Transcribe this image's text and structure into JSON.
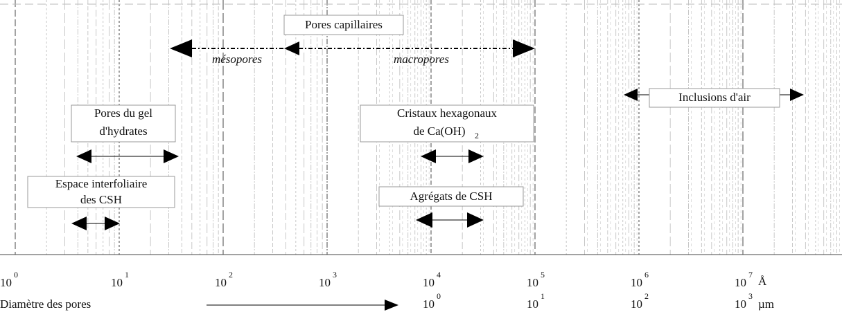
{
  "title_boxes": {
    "capillary": {
      "label": "Pores capillaires",
      "sub_left": "mésopores",
      "sub_right": "macropores"
    },
    "air": {
      "label": "Inclusions d'air"
    },
    "gel": {
      "lines": [
        "Pores du gel",
        "d'hydrates"
      ]
    },
    "crystals": {
      "line1": "Cristaux hexagonaux",
      "line2": {
        "text": "de Ca(OH)",
        "subscript": "2"
      }
    },
    "interlayer": {
      "lines": [
        "Espace interfoliaire",
        "des CSH"
      ]
    },
    "aggregates": {
      "label": "Agrégats de CSH"
    }
  },
  "axis": {
    "label": "Diamètre des pores",
    "angstrom_ticks": [
      {
        "base": "10",
        "exponent": "0"
      },
      {
        "base": "10",
        "exponent": "1"
      },
      {
        "base": "10",
        "exponent": "2"
      },
      {
        "base": "10",
        "exponent": "3"
      },
      {
        "base": "10",
        "exponent": "4"
      },
      {
        "base": "10",
        "exponent": "5"
      },
      {
        "base": "10",
        "exponent": "6"
      },
      {
        "base": "10",
        "exponent": "7"
      }
    ],
    "angstrom_unit": "Å",
    "micrometer_ticks": [
      {
        "base": "10",
        "exponent": "0"
      },
      {
        "base": "10",
        "exponent": "1"
      },
      {
        "base": "10",
        "exponent": "2"
      },
      {
        "base": "10",
        "exponent": "3"
      }
    ],
    "micrometer_unit": "µm"
  }
}
